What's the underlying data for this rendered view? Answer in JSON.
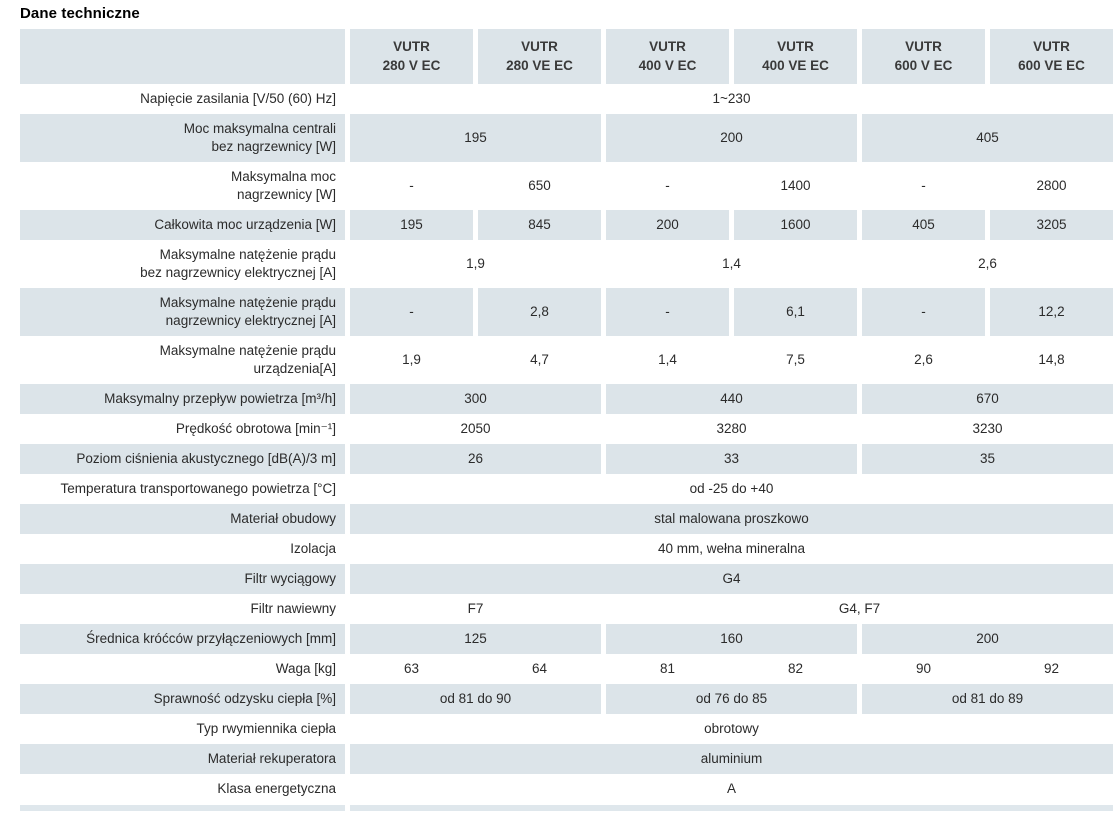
{
  "title": "Dane techniczne",
  "columns": [
    "VUTR\n280 V EC",
    "VUTR\n280 VE EC",
    "VUTR\n400 V EC",
    "VUTR\n400 VE EC",
    "VUTR\n600 V EC",
    "VUTR\n600 VE EC"
  ],
  "rows": [
    {
      "label": "Napięcie zasilania [V/50 (60) Hz]",
      "cells": [
        {
          "span": 6,
          "text": "1~230"
        }
      ]
    },
    {
      "label": "Moc maksymalna centrali\nbez nagrzewnicy [W]",
      "cells": [
        {
          "span": 2,
          "text": "195"
        },
        {
          "span": 2,
          "text": "200"
        },
        {
          "span": 2,
          "text": "405"
        }
      ]
    },
    {
      "label": "Maksymalna moc\nnagrzewnicy [W]",
      "cells": [
        {
          "span": 1,
          "text": "-"
        },
        {
          "span": 1,
          "text": "650"
        },
        {
          "span": 1,
          "text": "-"
        },
        {
          "span": 1,
          "text": "1400"
        },
        {
          "span": 1,
          "text": "-"
        },
        {
          "span": 1,
          "text": "2800"
        }
      ]
    },
    {
      "label": "Całkowita moc urządzenia [W]",
      "cells": [
        {
          "span": 1,
          "text": "195"
        },
        {
          "span": 1,
          "text": "845"
        },
        {
          "span": 1,
          "text": "200"
        },
        {
          "span": 1,
          "text": "1600"
        },
        {
          "span": 1,
          "text": "405"
        },
        {
          "span": 1,
          "text": "3205"
        }
      ]
    },
    {
      "label": "Maksymalne natężenie prądu\nbez nagrzewnicy elektrycznej [A]",
      "cells": [
        {
          "span": 2,
          "text": "1,9"
        },
        {
          "span": 2,
          "text": "1,4"
        },
        {
          "span": 2,
          "text": "2,6"
        }
      ]
    },
    {
      "label": "Maksymalne natężenie prądu\nnagrzewnicy elektrycznej [A]",
      "cells": [
        {
          "span": 1,
          "text": "-"
        },
        {
          "span": 1,
          "text": "2,8"
        },
        {
          "span": 1,
          "text": "-"
        },
        {
          "span": 1,
          "text": "6,1"
        },
        {
          "span": 1,
          "text": "-"
        },
        {
          "span": 1,
          "text": "12,2"
        }
      ]
    },
    {
      "label": "Maksymalne natężenie prądu\nurządzenia[A]",
      "cells": [
        {
          "span": 1,
          "text": "1,9"
        },
        {
          "span": 1,
          "text": "4,7"
        },
        {
          "span": 1,
          "text": "1,4"
        },
        {
          "span": 1,
          "text": "7,5"
        },
        {
          "span": 1,
          "text": "2,6"
        },
        {
          "span": 1,
          "text": "14,8"
        }
      ]
    },
    {
      "label": "Maksymalny przepływ powietrza [m³/h]",
      "cells": [
        {
          "span": 2,
          "text": "300"
        },
        {
          "span": 2,
          "text": "440"
        },
        {
          "span": 2,
          "text": "670"
        }
      ]
    },
    {
      "label": "Prędkość obrotowa [min⁻¹]",
      "cells": [
        {
          "span": 2,
          "text": "2050"
        },
        {
          "span": 2,
          "text": "3280"
        },
        {
          "span": 2,
          "text": "3230"
        }
      ]
    },
    {
      "label": "Poziom ciśnienia akustycznego [dB(A)/3 m]",
      "cells": [
        {
          "span": 2,
          "text": "26"
        },
        {
          "span": 2,
          "text": "33"
        },
        {
          "span": 2,
          "text": "35"
        }
      ]
    },
    {
      "label": "Temperatura transportowanego powietrza [°C]",
      "cells": [
        {
          "span": 6,
          "text": "od -25 do +40"
        }
      ]
    },
    {
      "label": "Materiał obudowy",
      "cells": [
        {
          "span": 6,
          "text": "stal malowana proszkowo"
        }
      ]
    },
    {
      "label": "Izolacja",
      "cells": [
        {
          "span": 6,
          "text": "40 mm, wełna mineralna"
        }
      ]
    },
    {
      "label": "Filtr wyciągowy",
      "cells": [
        {
          "span": 6,
          "text": "G4"
        }
      ]
    },
    {
      "label": "Filtr nawiewny",
      "cells": [
        {
          "span": 2,
          "text": "F7"
        },
        {
          "span": 4,
          "text": "G4, F7"
        }
      ]
    },
    {
      "label": "Średnica króćców przyłączeniowych [mm]",
      "cells": [
        {
          "span": 2,
          "text": "125"
        },
        {
          "span": 2,
          "text": "160"
        },
        {
          "span": 2,
          "text": "200"
        }
      ]
    },
    {
      "label": "Waga [kg]",
      "cells": [
        {
          "span": 1,
          "text": "63"
        },
        {
          "span": 1,
          "text": "64"
        },
        {
          "span": 1,
          "text": "81"
        },
        {
          "span": 1,
          "text": "82"
        },
        {
          "span": 1,
          "text": "90"
        },
        {
          "span": 1,
          "text": "92"
        }
      ]
    },
    {
      "label": "Sprawność odzysku ciepła [%]",
      "cells": [
        {
          "span": 2,
          "text": "od 81 do 90"
        },
        {
          "span": 2,
          "text": "od 76 do 85"
        },
        {
          "span": 2,
          "text": "od 81 do 89"
        }
      ]
    },
    {
      "label": "Typ rwymiennika ciepła",
      "cells": [
        {
          "span": 6,
          "text": "obrotowy"
        }
      ]
    },
    {
      "label": "Materiał rekuperatora",
      "cells": [
        {
          "span": 6,
          "text": "aluminium"
        }
      ]
    },
    {
      "label": "Klasa energetyczna",
      "cells": [
        {
          "span": 6,
          "text": "A"
        }
      ]
    }
  ],
  "colors": {
    "row_shaded": "#dce4e9",
    "header_bg": "#dce4e9",
    "bottom_strip": "#dfe7ec",
    "text": "#2b2b2b",
    "title_text": "#000000"
  }
}
